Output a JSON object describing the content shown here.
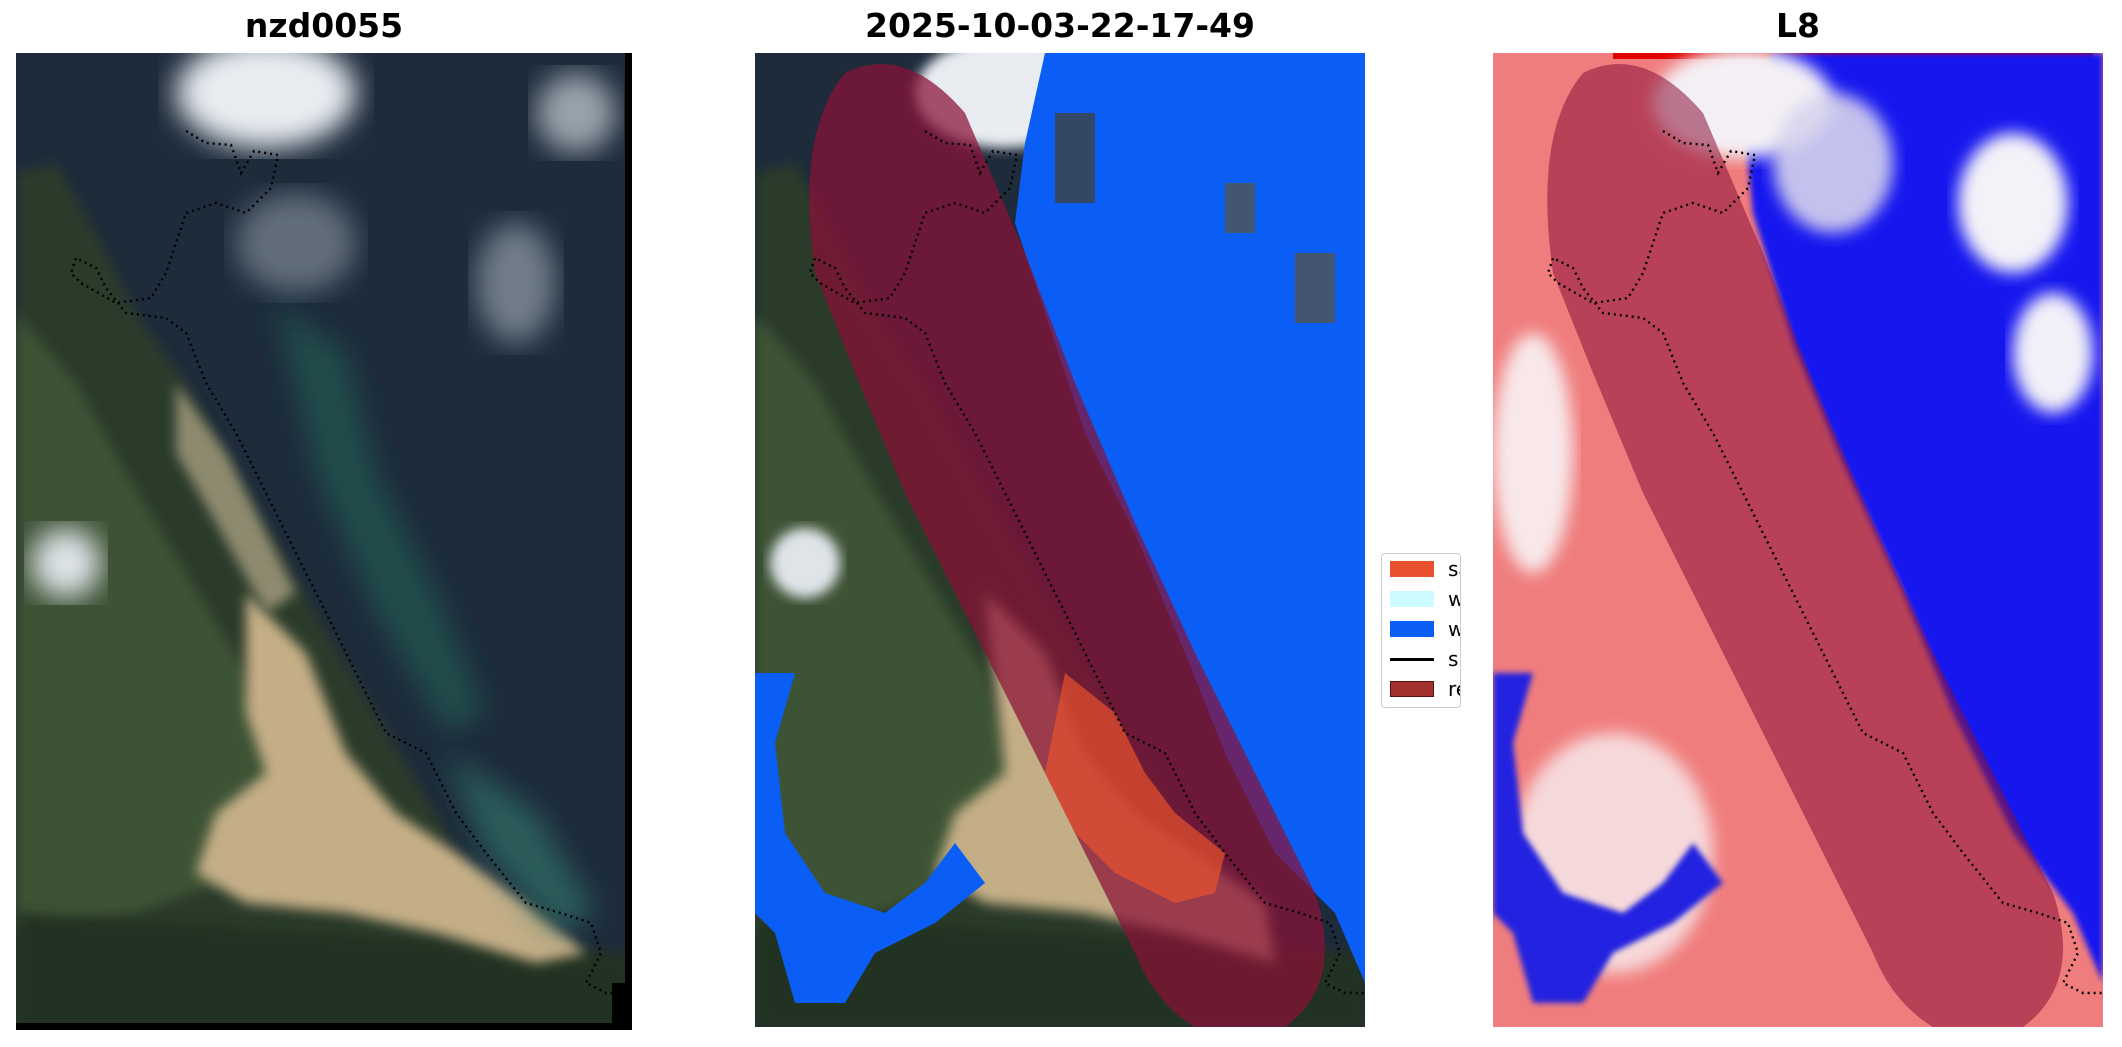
{
  "panels": [
    {
      "title": "nzd0055",
      "content": "satellite-rgb-image"
    },
    {
      "title": "2025-10-03-22-17-49",
      "content": "classified-image-overlay"
    },
    {
      "title": "L8",
      "content": "index-heatmap-overlay"
    }
  ],
  "legend": {
    "items": [
      {
        "label": "sand",
        "color": "#e8512e",
        "kind": "patch"
      },
      {
        "label": "white-water",
        "color": "#ccfcff",
        "kind": "patch"
      },
      {
        "label": "water",
        "color": "#0a5ef5",
        "kind": "patch"
      },
      {
        "label": "shoreline",
        "color": "#000000",
        "kind": "line"
      },
      {
        "label": "reference shoreline buffer",
        "color": "#a3312e",
        "kind": "patch"
      }
    ]
  },
  "colors": {
    "land_dark": "#243526",
    "ocean_dark": "#1b2a3a",
    "sand": "#c2ad85",
    "water_class": "#0a5ef5",
    "buffer_overlay": "#8b1038",
    "heat_positive": "#ef6a6a",
    "heat_negative": "#1212f0"
  }
}
